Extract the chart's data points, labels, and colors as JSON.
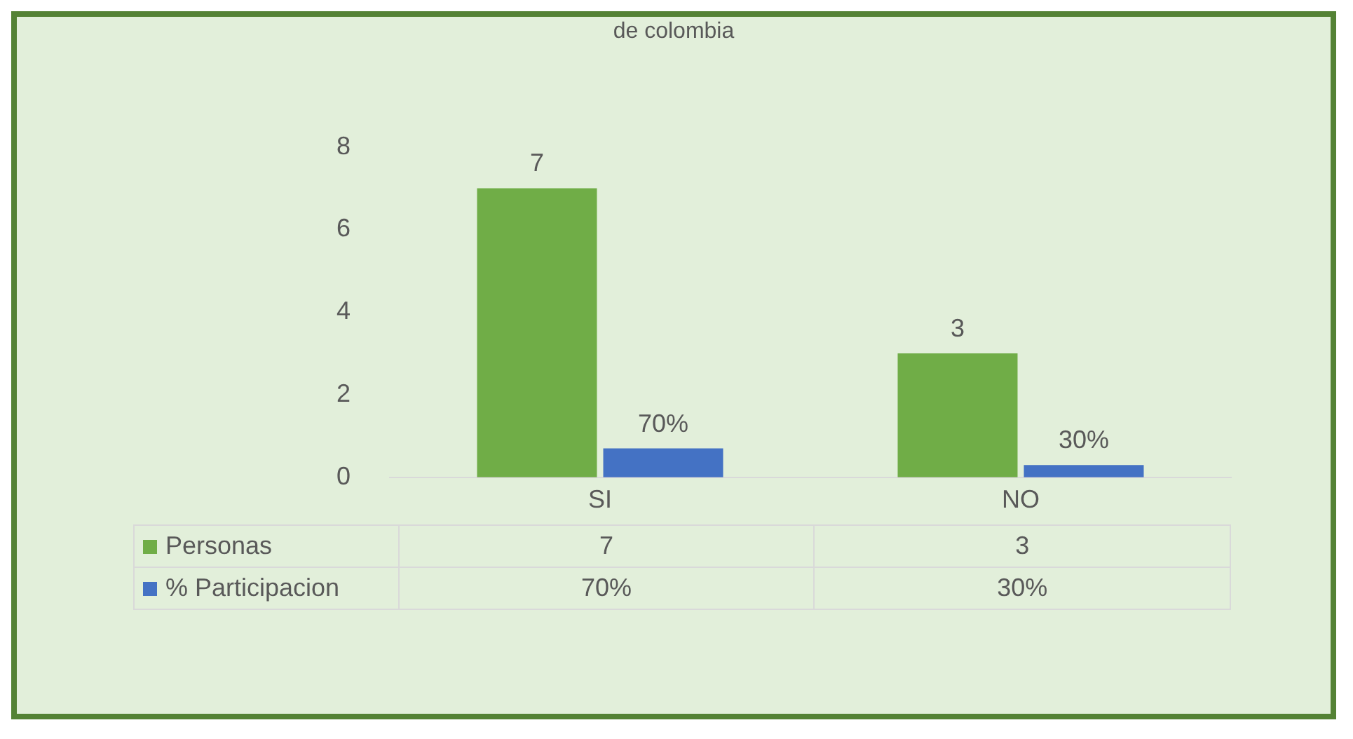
{
  "chart_data": {
    "type": "bar",
    "title": "de colombia",
    "categories": [
      "SI",
      "NO"
    ],
    "series": [
      {
        "name": "Personas",
        "color": "#70ad47",
        "values": [
          7,
          3
        ],
        "value_labels": [
          "7",
          "3"
        ]
      },
      {
        "name": "% Participacion",
        "color": "#4472c4",
        "values": [
          0.7,
          0.3
        ],
        "value_labels": [
          "70%",
          "30%"
        ]
      }
    ],
    "ylim": [
      0,
      8
    ],
    "yticks": [
      0,
      2,
      4,
      6,
      8
    ],
    "grid": false,
    "legend": "bottom",
    "data_labels": true
  }
}
